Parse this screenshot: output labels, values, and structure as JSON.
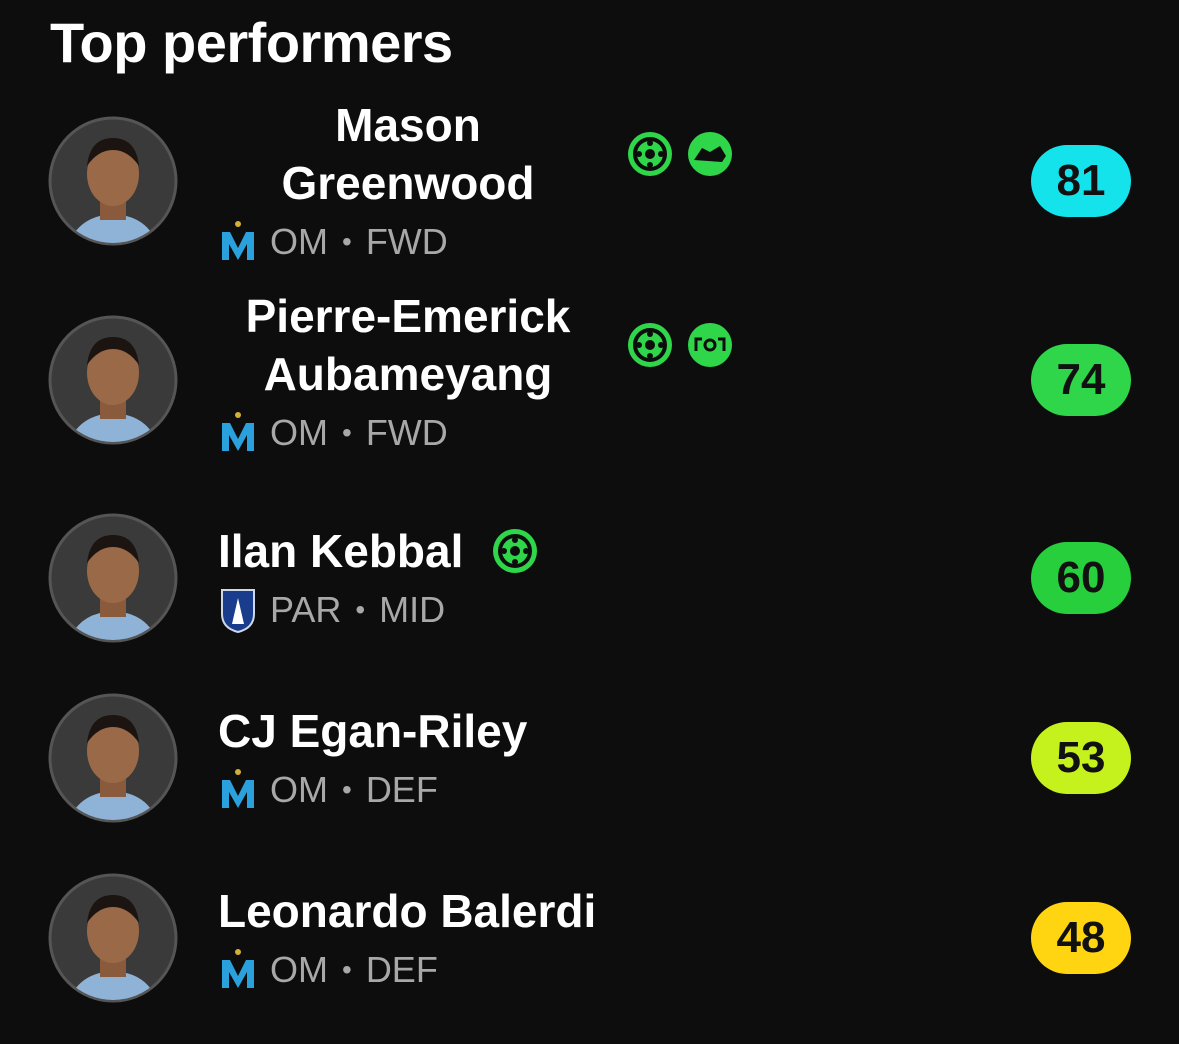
{
  "header": {
    "title": "Top performers"
  },
  "separator": "•",
  "players": [
    {
      "name": "Mason Greenwood",
      "team": "OM",
      "position": "FWD",
      "rating": 81,
      "rating_color": "#14e3ec"
    },
    {
      "name": "Pierre-Emerick Aubameyang",
      "team": "OM",
      "position": "FWD",
      "rating": 74,
      "rating_color": "#2fd64a"
    },
    {
      "name": "Ilan Kebbal",
      "team": "PAR",
      "position": "MID",
      "rating": 60,
      "rating_color": "#27cf3c"
    },
    {
      "name": "CJ Egan-Riley",
      "team": "OM",
      "position": "DEF",
      "rating": 53,
      "rating_color": "#c5f21c"
    },
    {
      "name": "Leonardo Balerdi",
      "team": "OM",
      "position": "DEF",
      "rating": 48,
      "rating_color": "#ffd512"
    }
  ]
}
